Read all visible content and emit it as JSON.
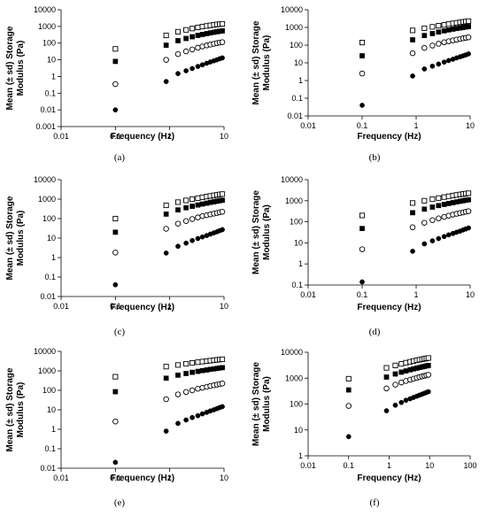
{
  "panels_meta": {
    "x_scale": "log",
    "y_scale": "log",
    "grid": false,
    "legend": "none",
    "marker_styles": [
      "open-square",
      "filled-square",
      "open-circle",
      "filled-circle"
    ]
  },
  "chart_data": [
    {
      "type": "scatter",
      "caption": "(a)",
      "xlabel": "Frequency (Hz)",
      "ylabel": [
        "Mean (± sd) Storage",
        "Modulus (Pa)"
      ],
      "xlim": [
        0.01,
        10
      ],
      "ylim": [
        0.001,
        10000
      ],
      "xticks": [
        "0.01",
        "0.1",
        "1",
        "10"
      ],
      "yticks": [
        "0.001",
        "0.01",
        "0.1",
        "1",
        "10",
        "100",
        "1000",
        "10000"
      ],
      "x": [
        0.1,
        0.86,
        1.42,
        2.0,
        2.6,
        3.3,
        4.0,
        4.8,
        5.6,
        6.5,
        7.4,
        8.3,
        9.3
      ],
      "series": [
        {
          "marker": "open-square",
          "values": [
            45,
            290,
            480,
            620,
            750,
            870,
            980,
            1070,
            1160,
            1240,
            1310,
            1370,
            1420
          ]
        },
        {
          "marker": "filled-square",
          "values": [
            8,
            75,
            140,
            190,
            240,
            290,
            330,
            370,
            410,
            445,
            480,
            510,
            540
          ]
        },
        {
          "marker": "open-circle",
          "values": [
            0.35,
            10,
            22,
            32,
            42,
            53,
            63,
            73,
            82,
            91,
            100,
            108,
            115
          ]
        },
        {
          "marker": "filled-circle",
          "values": [
            0.01,
            0.5,
            1.5,
            2.2,
            3.0,
            4.0,
            5.0,
            6.2,
            7.4,
            8.7,
            10,
            11.5,
            13
          ]
        }
      ]
    },
    {
      "type": "scatter",
      "caption": "(b)",
      "xlabel": "Frequency (Hz)",
      "ylabel": [
        "Mean (± sd) Storage",
        "Modulus (Pa)"
      ],
      "xlim": [
        0.01,
        10
      ],
      "ylim": [
        0.01,
        10000
      ],
      "xticks": [
        "0.01",
        "0.1",
        "1",
        "10"
      ],
      "yticks": [
        "0.01",
        "0.1",
        "1",
        "10",
        "100",
        "1000",
        "10000"
      ],
      "x": [
        0.1,
        0.86,
        1.42,
        2.0,
        2.6,
        3.3,
        4.0,
        4.8,
        5.6,
        6.5,
        7.4,
        8.3,
        9.3
      ],
      "series": [
        {
          "marker": "open-square",
          "values": [
            140,
            680,
            900,
            1080,
            1250,
            1400,
            1550,
            1700,
            1830,
            1950,
            2060,
            2160,
            2260
          ]
        },
        {
          "marker": "filled-square",
          "values": [
            25,
            200,
            350,
            450,
            550,
            640,
            720,
            800,
            870,
            940,
            1000,
            1060,
            1120
          ]
        },
        {
          "marker": "open-circle",
          "values": [
            2.5,
            35,
            70,
            95,
            120,
            145,
            165,
            185,
            205,
            225,
            245,
            260,
            275
          ]
        },
        {
          "marker": "filled-circle",
          "values": [
            0.04,
            1.8,
            4.5,
            6.5,
            8.5,
            11,
            13.5,
            16,
            19,
            22,
            25,
            28,
            32
          ]
        }
      ]
    },
    {
      "type": "scatter",
      "caption": "(c)",
      "xlabel": "Frequency (Hz)",
      "ylabel": [
        "Mean (± sd) Storage",
        "Modulus (Pa)"
      ],
      "xlim": [
        0.01,
        10
      ],
      "ylim": [
        0.01,
        10000
      ],
      "xticks": [
        "0.01",
        "0.1",
        "1",
        "10"
      ],
      "yticks": [
        "0.01",
        "0.1",
        "1",
        "10",
        "100",
        "1000",
        "10000"
      ],
      "x": [
        0.1,
        0.86,
        1.42,
        2.0,
        2.6,
        3.3,
        4.0,
        4.8,
        5.6,
        6.5,
        7.4,
        8.3,
        9.3
      ],
      "series": [
        {
          "marker": "open-square",
          "values": [
            100,
            480,
            700,
            860,
            1000,
            1130,
            1250,
            1360,
            1460,
            1560,
            1650,
            1740,
            1820
          ]
        },
        {
          "marker": "filled-square",
          "values": [
            20,
            170,
            280,
            360,
            430,
            500,
            560,
            620,
            680,
            730,
            780,
            830,
            880
          ]
        },
        {
          "marker": "open-circle",
          "values": [
            1.8,
            30,
            55,
            75,
            95,
            115,
            135,
            150,
            165,
            180,
            195,
            210,
            225
          ]
        },
        {
          "marker": "filled-circle",
          "values": [
            0.04,
            1.7,
            3.8,
            5.5,
            7.5,
            9.5,
            11.5,
            13.5,
            16,
            18.5,
            21,
            24,
            27
          ]
        }
      ]
    },
    {
      "type": "scatter",
      "caption": "(d)",
      "xlabel": "Frequency (Hz)",
      "ylabel": [
        "Mean (± sd) Storage",
        "Modulus (Pa)"
      ],
      "xlim": [
        0.01,
        10
      ],
      "ylim": [
        0.1,
        10000
      ],
      "xticks": [
        "0.01",
        "0.1",
        "1",
        "10"
      ],
      "yticks": [
        "0.1",
        "1",
        "10",
        "100",
        "1000",
        "10000"
      ],
      "x": [
        0.1,
        0.86,
        1.42,
        2.0,
        2.6,
        3.3,
        4.0,
        4.8,
        5.6,
        6.5,
        7.4,
        8.3,
        9.3
      ],
      "series": [
        {
          "marker": "open-square",
          "values": [
            200,
            780,
            1000,
            1180,
            1340,
            1490,
            1630,
            1760,
            1880,
            1990,
            2090,
            2180,
            2270
          ]
        },
        {
          "marker": "filled-square",
          "values": [
            48,
            270,
            400,
            500,
            590,
            670,
            740,
            810,
            880,
            940,
            1000,
            1060,
            1110
          ]
        },
        {
          "marker": "open-circle",
          "values": [
            5,
            55,
            90,
            120,
            145,
            170,
            195,
            220,
            240,
            260,
            280,
            300,
            320
          ]
        },
        {
          "marker": "filled-circle",
          "values": [
            0.14,
            4,
            9,
            12.5,
            16,
            20,
            24,
            28,
            32,
            36,
            41,
            46,
            51
          ]
        }
      ]
    },
    {
      "type": "scatter",
      "caption": "(e)",
      "xlabel": "Frequency (Hz)",
      "ylabel": [
        "Mean (± sd) Storage",
        "Modulus (Pa)"
      ],
      "xlim": [
        0.01,
        10
      ],
      "ylim": [
        0.01,
        10000
      ],
      "xticks": [
        "0.01",
        "0.1",
        "1",
        "10"
      ],
      "yticks": [
        "0.01",
        "0.1",
        "1",
        "10",
        "100",
        "1000",
        "10000"
      ],
      "x": [
        0.1,
        0.86,
        1.42,
        2.0,
        2.6,
        3.3,
        4.0,
        4.8,
        5.6,
        6.5,
        7.4,
        8.3,
        9.3
      ],
      "series": [
        {
          "marker": "open-square",
          "values": [
            500,
            1650,
            2000,
            2300,
            2550,
            2780,
            2980,
            3170,
            3340,
            3500,
            3650,
            3790,
            3920
          ]
        },
        {
          "marker": "filled-square",
          "values": [
            85,
            420,
            600,
            730,
            840,
            940,
            1030,
            1110,
            1190,
            1260,
            1330,
            1400,
            1460
          ]
        },
        {
          "marker": "open-circle",
          "values": [
            2.5,
            35,
            62,
            82,
            100,
            120,
            135,
            152,
            167,
            182,
            196,
            210,
            224
          ]
        },
        {
          "marker": "filled-circle",
          "values": [
            0.02,
            0.8,
            2.0,
            3.0,
            4.0,
            5.0,
            6.2,
            7.4,
            8.7,
            10,
            11.5,
            13,
            14.5
          ]
        }
      ]
    },
    {
      "type": "scatter",
      "caption": "(f)",
      "xlabel": "Frequency (Hz)",
      "ylabel": [
        "Mean (± sd) Storage",
        "Modulus (Pa)"
      ],
      "xlim": [
        0.01,
        100
      ],
      "ylim": [
        1,
        10000
      ],
      "xticks": [
        "0.01",
        "0.1",
        "1",
        "10",
        "100"
      ],
      "yticks": [
        "1",
        "10",
        "100",
        "1000",
        "10000"
      ],
      "x": [
        0.1,
        0.86,
        1.42,
        2.0,
        2.6,
        3.3,
        4.0,
        4.8,
        5.6,
        6.5,
        7.4,
        8.3,
        9.3
      ],
      "series": [
        {
          "marker": "open-square",
          "values": [
            950,
            2500,
            3100,
            3550,
            3950,
            4300,
            4600,
            4880,
            5130,
            5370,
            5590,
            5800,
            6000
          ]
        },
        {
          "marker": "filled-square",
          "values": [
            350,
            1100,
            1450,
            1700,
            1900,
            2100,
            2270,
            2430,
            2580,
            2720,
            2850,
            2970,
            3090
          ]
        },
        {
          "marker": "open-circle",
          "values": [
            85,
            400,
            560,
            680,
            780,
            870,
            950,
            1030,
            1100,
            1170,
            1230,
            1290,
            1350
          ]
        },
        {
          "marker": "filled-circle",
          "values": [
            5.5,
            55,
            90,
            115,
            140,
            160,
            180,
            200,
            220,
            240,
            260,
            280,
            300
          ]
        }
      ]
    }
  ]
}
